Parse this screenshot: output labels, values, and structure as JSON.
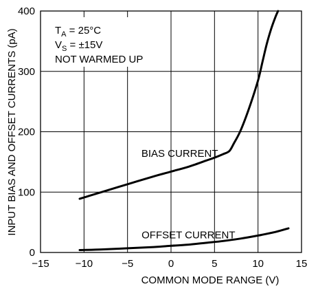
{
  "chart_data": {
    "type": "line",
    "xlabel": "COMMON MODE RANGE (V)",
    "ylabel": "INPUT BIAS AND OFFSET CURRENTS (pA)",
    "xlim": [
      -15,
      15
    ],
    "ylim": [
      0,
      400
    ],
    "xticks": [
      -15,
      -10,
      -5,
      0,
      5,
      10,
      15
    ],
    "yticks": [
      0,
      100,
      200,
      300,
      400
    ],
    "grid": true,
    "annotations": {
      "line1_main": "T",
      "line1_sub": "A",
      "line1_rest": " = 25°C",
      "line2_main": "V",
      "line2_sub": "S",
      "line2_rest": " = ±15V",
      "line3": "NOT WARMED UP"
    },
    "series": [
      {
        "name": "BIAS CURRENT",
        "x": [
          -10.5,
          -8,
          -5,
          -2,
          0,
          2,
          4,
          5,
          6,
          6.7,
          7.2,
          8,
          9,
          10,
          10.5,
          11,
          11.5,
          12,
          12.3
        ],
        "y": [
          89,
          100,
          113,
          126,
          134,
          142,
          152,
          157,
          163,
          168,
          180,
          202,
          240,
          285,
          315,
          345,
          370,
          390,
          400
        ]
      },
      {
        "name": "OFFSET CURRENT",
        "x": [
          -10.5,
          -8,
          -5,
          -2,
          0,
          2,
          4,
          6,
          8,
          10,
          12,
          13.5
        ],
        "y": [
          4,
          5,
          7,
          9,
          11,
          13,
          16,
          19,
          23,
          28,
          34,
          40
        ]
      }
    ],
    "series_label_positions": [
      {
        "name": "BIAS CURRENT",
        "x": 1,
        "y": 164
      },
      {
        "name": "OFFSET CURRENT",
        "x": 2,
        "y": 29
      }
    ]
  }
}
